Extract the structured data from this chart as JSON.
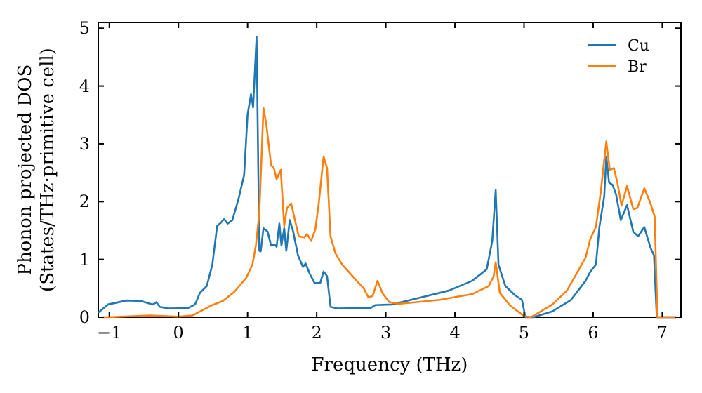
{
  "chart_data": {
    "type": "line",
    "xlabel": "Frequency (THz)",
    "ylabel": "Phonon projected DOS\n(States/THz·primitive cell)",
    "xlim": [
      -1.16,
      7.27
    ],
    "ylim": [
      0,
      5.1
    ],
    "xticks": [
      -1,
      0,
      1,
      2,
      3,
      4,
      5,
      6,
      7
    ],
    "yticks": [
      0,
      1,
      2,
      3,
      4,
      5
    ],
    "grid": false,
    "legend": "top right",
    "marker": "none",
    "line_style": "solid",
    "series": [
      {
        "name": "Cu",
        "color": "#1f77b4",
        "x": [
          -1.16,
          -1.02,
          -0.75,
          -0.54,
          -0.37,
          -0.32,
          -0.27,
          -0.14,
          0.14,
          0.24,
          0.31,
          0.41,
          0.49,
          0.56,
          0.61,
          0.66,
          0.71,
          0.78,
          0.87,
          0.95,
          1.0,
          1.05,
          1.08,
          1.13,
          1.17,
          1.19,
          1.23,
          1.29,
          1.34,
          1.39,
          1.42,
          1.46,
          1.49,
          1.53,
          1.56,
          1.61,
          1.66,
          1.73,
          1.8,
          1.84,
          1.9,
          1.97,
          2.05,
          2.1,
          2.15,
          2.2,
          2.31,
          2.78,
          2.85,
          3.09,
          3.5,
          3.91,
          4.25,
          4.46,
          4.54,
          4.59,
          4.63,
          4.73,
          4.87,
          4.97,
          5.02,
          5.14,
          5.41,
          5.68,
          5.89,
          5.96,
          6.04,
          6.09,
          6.16,
          6.19,
          6.23,
          6.28,
          6.33,
          6.4,
          6.49,
          6.58,
          6.65,
          6.74,
          6.83,
          6.88,
          6.92,
          7.2
        ],
        "values": [
          0.08,
          0.22,
          0.29,
          0.28,
          0.22,
          0.26,
          0.18,
          0.15,
          0.16,
          0.22,
          0.42,
          0.54,
          0.91,
          1.58,
          1.63,
          1.7,
          1.62,
          1.68,
          2.05,
          2.46,
          3.51,
          3.86,
          3.63,
          4.85,
          1.15,
          1.14,
          1.54,
          1.48,
          1.24,
          1.26,
          1.22,
          1.62,
          1.24,
          1.54,
          1.15,
          1.68,
          1.48,
          1.07,
          0.87,
          0.93,
          0.75,
          0.59,
          0.59,
          0.79,
          0.71,
          0.18,
          0.15,
          0.16,
          0.21,
          0.22,
          0.34,
          0.46,
          0.63,
          0.83,
          1.32,
          2.2,
          0.91,
          0.54,
          0.38,
          0.3,
          0,
          0,
          0.1,
          0.3,
          0.63,
          0.79,
          0.91,
          1.56,
          2.09,
          2.78,
          2.33,
          2.29,
          2.13,
          1.68,
          1.94,
          1.48,
          1.4,
          1.56,
          1.2,
          1.07,
          0,
          0
        ]
      },
      {
        "name": "Br",
        "color": "#ff7f0e",
        "x": [
          -1.1,
          -1.02,
          -0.41,
          0,
          0.2,
          0.47,
          0.64,
          0.81,
          0.98,
          1.07,
          1.12,
          1.17,
          1.21,
          1.23,
          1.27,
          1.34,
          1.38,
          1.42,
          1.48,
          1.53,
          1.57,
          1.63,
          1.67,
          1.74,
          1.82,
          1.86,
          1.92,
          1.98,
          2.03,
          2.1,
          2.15,
          2.2,
          2.27,
          2.37,
          2.58,
          2.68,
          2.75,
          2.81,
          2.88,
          2.95,
          3.05,
          3.19,
          3.78,
          4.25,
          4.49,
          4.56,
          4.59,
          4.65,
          4.8,
          5.0,
          5.1,
          5.41,
          5.62,
          5.72,
          5.89,
          5.96,
          6.04,
          6.11,
          6.19,
          6.24,
          6.3,
          6.35,
          6.41,
          6.49,
          6.58,
          6.64,
          6.74,
          6.83,
          6.89,
          6.93,
          7.2
        ],
        "values": [
          0,
          0,
          0.03,
          0.01,
          0.03,
          0.2,
          0.28,
          0.44,
          0.68,
          0.91,
          1.24,
          1.8,
          3.02,
          3.62,
          3.35,
          2.63,
          2.58,
          2.39,
          2.55,
          1.58,
          1.89,
          1.97,
          1.76,
          1.4,
          1.38,
          1.44,
          1.32,
          1.52,
          1.97,
          2.78,
          2.58,
          1.4,
          1.11,
          0.91,
          0.63,
          0.5,
          0.34,
          0.37,
          0.63,
          0.42,
          0.26,
          0.23,
          0.3,
          0.4,
          0.54,
          0.71,
          0.95,
          0.42,
          0.2,
          0.02,
          0,
          0.22,
          0.46,
          0.67,
          1.03,
          1.36,
          1.56,
          2.17,
          3.04,
          2.55,
          2.58,
          2.33,
          1.93,
          2.27,
          1.87,
          1.89,
          2.23,
          1.97,
          1.74,
          0,
          0
        ]
      }
    ]
  }
}
